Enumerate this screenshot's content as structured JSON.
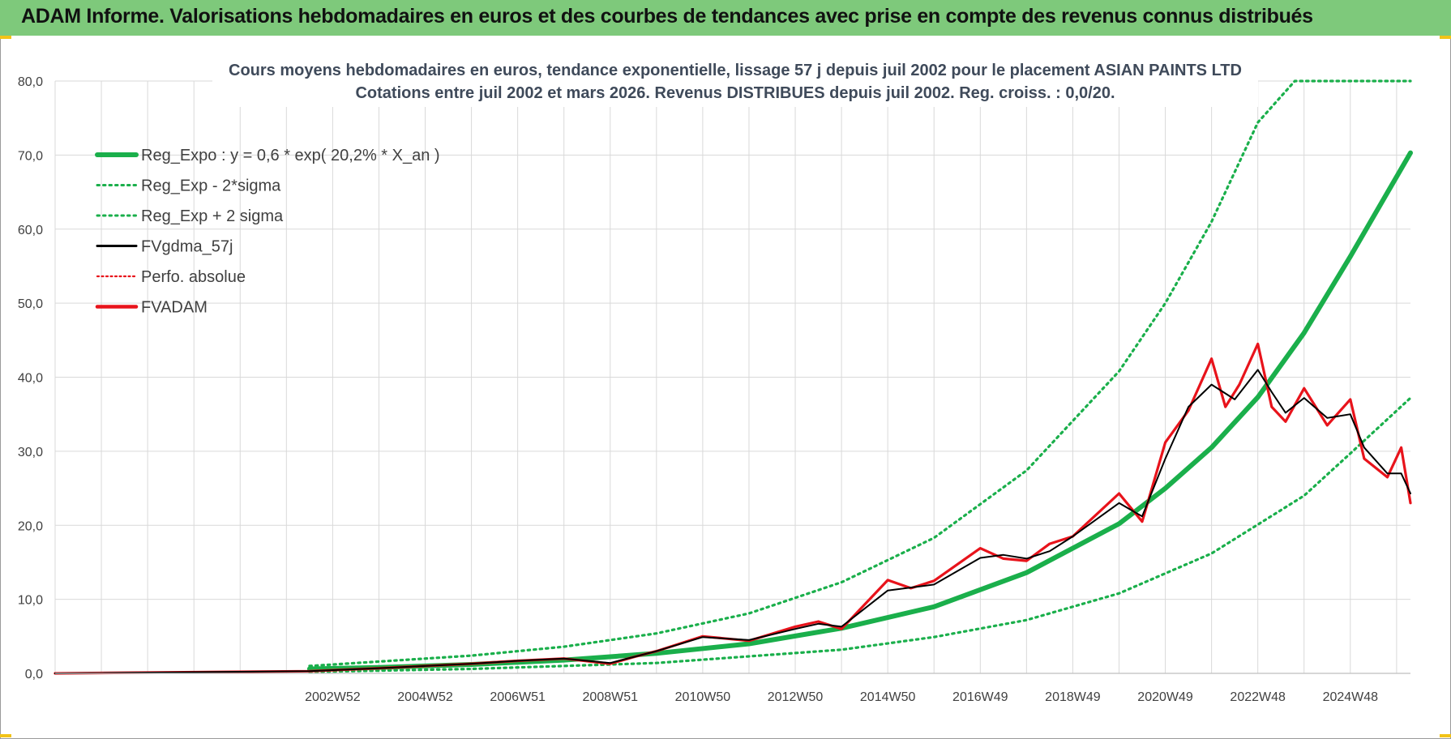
{
  "header": {
    "title": "ADAM Informe. Valorisations hebdomadaires en euros et des courbes de tendances avec prise en compte des revenus connus distribués"
  },
  "colors": {
    "banner": "#7ec97b",
    "reg_expo": "#1aaf4b",
    "sigma": "#1aaf4b",
    "fvgdma": "#000000",
    "fvadam": "#e8131b",
    "perfo": "#e8131b",
    "grid": "#d9d9d9"
  },
  "chart_data": {
    "type": "line",
    "title": "Cours moyens hebdomadaires en euros, tendance exponentielle, lissage 57 j depuis juil 2002 pour le placement ASIAN  PAINTS LTD",
    "subtitle": "Cotations entre juil 2002 et mars 2026. Revenus DISTRIBUES depuis juil 2002. Reg. croiss. : 0,0/20.",
    "xlabel": "",
    "ylabel": "",
    "ylim": [
      0,
      80
    ],
    "xlim": [
      1997.0,
      2026.3
    ],
    "y_ticks": [
      "0,0",
      "10,0",
      "20,0",
      "30,0",
      "40,0",
      "50,0",
      "60,0",
      "70,0",
      "80,0"
    ],
    "x_ticks": [
      {
        "label": "2002W52",
        "x": 2003.0
      },
      {
        "label": "2004W52",
        "x": 2005.0
      },
      {
        "label": "2006W51",
        "x": 2007.0
      },
      {
        "label": "2008W51",
        "x": 2009.0
      },
      {
        "label": "2010W50",
        "x": 2011.0
      },
      {
        "label": "2012W50",
        "x": 2013.0
      },
      {
        "label": "2014W50",
        "x": 2015.0
      },
      {
        "label": "2016W49",
        "x": 2017.0
      },
      {
        "label": "2018W49",
        "x": 2019.0
      },
      {
        "label": "2020W49",
        "x": 2021.0
      },
      {
        "label": "2022W48",
        "x": 2023.0
      },
      {
        "label": "2024W48",
        "x": 2025.0
      }
    ],
    "legend": [
      {
        "key": "reg_expo",
        "label": "Reg_Expo : y = 0,6 * exp( 20,2% *  X_an )"
      },
      {
        "key": "sigma_minus",
        "label": "Reg_Exp - 2*sigma"
      },
      {
        "key": "sigma_plus",
        "label": "Reg_Exp + 2 sigma"
      },
      {
        "key": "fvgdma",
        "label": "FVgdma_57j"
      },
      {
        "key": "perfo",
        "label": "Perfo. absolue"
      },
      {
        "key": "fvadam",
        "label": "FVADAM"
      }
    ],
    "series": [
      {
        "name": "Reg_Expo",
        "style": "solid-thick",
        "color": "#1aaf4b",
        "x": [
          2002.5,
          2004,
          2006,
          2008,
          2010,
          2012,
          2014,
          2016,
          2018,
          2020,
          2021,
          2022,
          2023,
          2024,
          2025,
          2026.3
        ],
        "y": [
          0.6,
          0.8,
          1.2,
          1.8,
          2.7,
          4.0,
          6.1,
          9.0,
          13.6,
          20.2,
          25.0,
          30.5,
          37.3,
          46.0,
          56.3,
          70.3
        ]
      },
      {
        "name": "Reg_Exp - 2*sigma",
        "style": "dotted",
        "color": "#1aaf4b",
        "x": [
          2002.5,
          2006,
          2010,
          2014,
          2016,
          2018,
          2020,
          2022,
          2024,
          2025,
          2026.3
        ],
        "y": [
          0.2,
          0.6,
          1.4,
          3.2,
          4.9,
          7.2,
          10.8,
          16.2,
          24.0,
          29.7,
          37.2
        ]
      },
      {
        "name": "Reg_Exp + 2 sigma",
        "style": "dotted",
        "color": "#1aaf4b",
        "x": [
          2002.5,
          2006,
          2008,
          2010,
          2012,
          2014,
          2016,
          2018,
          2020,
          2021,
          2022,
          2023,
          2023.8,
          2026.3
        ],
        "y": [
          1.0,
          2.4,
          3.6,
          5.4,
          8.1,
          12.3,
          18.3,
          27.4,
          40.8,
          50.0,
          61.0,
          74.4,
          80.0,
          80.0
        ]
      },
      {
        "name": "FVgdma_57j",
        "style": "solid",
        "color": "#000000",
        "x": [
          1997.0,
          2002.5,
          2004,
          2005,
          2006,
          2007,
          2008,
          2009,
          2009.5,
          2010,
          2011,
          2012,
          2013,
          2013.5,
          2014,
          2015,
          2016,
          2017,
          2017.5,
          2018,
          2018.5,
          2019,
          2020,
          2020.5,
          2021,
          2021.5,
          2022,
          2022.5,
          2023,
          2023.3,
          2023.6,
          2024,
          2024.5,
          2025,
          2025.3,
          2025.8,
          2026.1,
          2026.3
        ],
        "y": [
          0.0,
          0.3,
          0.7,
          1.0,
          1.3,
          1.7,
          2.0,
          1.4,
          2.2,
          3.0,
          4.9,
          4.5,
          6.0,
          6.7,
          6.3,
          11.2,
          12.0,
          15.6,
          16.0,
          15.5,
          16.5,
          18.5,
          23.0,
          21.2,
          29.0,
          36.0,
          39.0,
          37.0,
          41.0,
          38.0,
          35.2,
          37.2,
          34.5,
          35.0,
          30.5,
          27.0,
          27.0,
          24.3
        ]
      },
      {
        "name": "FVADAM",
        "style": "solid-thick",
        "color": "#e8131b",
        "x": [
          1997.0,
          2002.5,
          2004,
          2005,
          2006,
          2007,
          2008,
          2009,
          2009.5,
          2010,
          2011,
          2012,
          2013,
          2013.5,
          2014,
          2015,
          2015.5,
          2016,
          2017,
          2017.5,
          2018,
          2018.5,
          2019,
          2020,
          2020.5,
          2021,
          2021.5,
          2022,
          2022.3,
          2022.6,
          2023,
          2023.3,
          2023.6,
          2024,
          2024.5,
          2025,
          2025.3,
          2025.8,
          2026.1,
          2026.3
        ],
        "y": [
          0.0,
          0.3,
          0.7,
          1.0,
          1.3,
          1.7,
          2.0,
          1.3,
          2.2,
          3.0,
          5.0,
          4.4,
          6.3,
          7.0,
          6.0,
          12.6,
          11.5,
          12.5,
          16.9,
          15.5,
          15.2,
          17.5,
          18.5,
          24.3,
          20.5,
          31.2,
          35.5,
          42.5,
          36.0,
          39.0,
          44.5,
          36.0,
          34.0,
          38.5,
          33.5,
          37.0,
          29.0,
          26.5,
          30.5,
          23.0
        ]
      }
    ]
  }
}
